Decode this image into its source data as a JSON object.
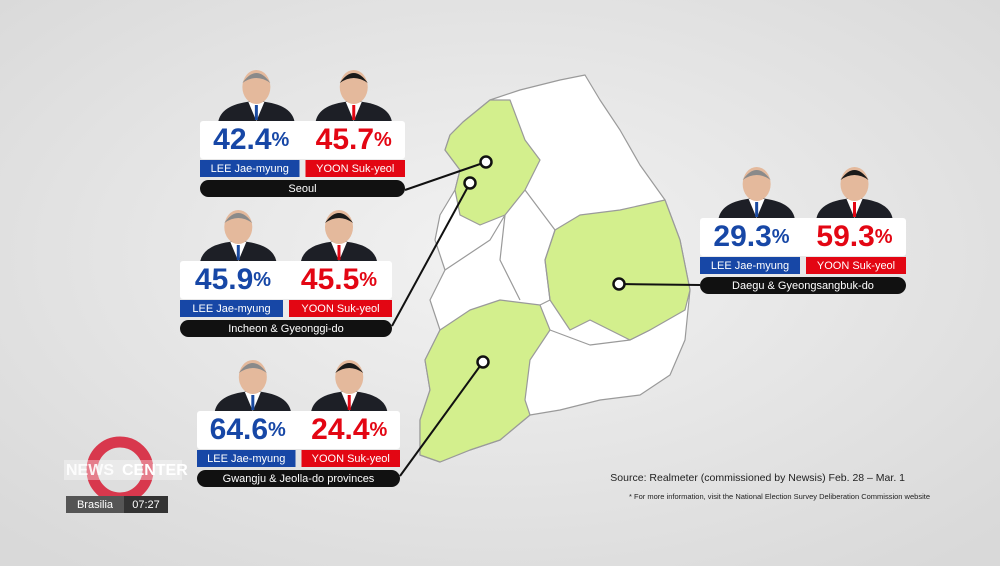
{
  "regions": [
    {
      "name": "Seoul",
      "lee": {
        "value": "42.4",
        "unit": "%"
      },
      "yoon": {
        "value": "45.7",
        "unit": "%"
      }
    },
    {
      "name": "Incheon & Gyeonggi-do",
      "lee": {
        "value": "45.9",
        "unit": "%"
      },
      "yoon": {
        "value": "45.5",
        "unit": "%"
      }
    },
    {
      "name": "Gwangju & Jeolla-do provinces",
      "lee": {
        "value": "64.6",
        "unit": "%"
      },
      "yoon": {
        "value": "24.4",
        "unit": "%"
      }
    },
    {
      "name": "Daegu & Gyeongsangbuk-do",
      "lee": {
        "value": "29.3",
        "unit": "%"
      },
      "yoon": {
        "value": "59.3",
        "unit": "%"
      }
    }
  ],
  "candidates": {
    "lee": "LEE Jae-myung",
    "yoon": "YOON Suk-yeol"
  },
  "source": "Source:  Realmeter (commissioned by Newsis) Feb. 28 – Mar. 1",
  "footnote": "* For more information, visit the National Election Survey Deliberation Commission website",
  "logo": {
    "brand_left": "NEWS",
    "brand_right": "CENTER",
    "city": "Brasilia",
    "time": "07:27"
  }
}
